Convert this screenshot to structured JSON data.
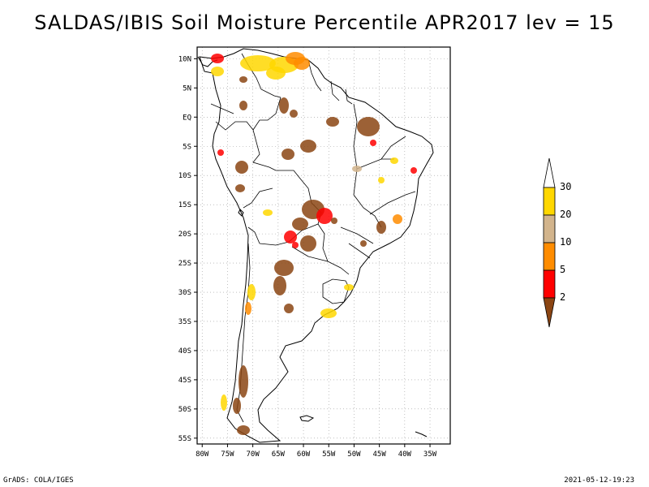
{
  "title": "SALDAS/IBIS Soil Moisture Percentile APR2017 lev = 15",
  "map": {
    "lon_range": [
      -81,
      -31
    ],
    "lat_range": [
      -56,
      12
    ],
    "lat_labels": [
      {
        "lat": 10,
        "label": "10N"
      },
      {
        "lat": 5,
        "label": "5N"
      },
      {
        "lat": 0,
        "label": "EQ"
      },
      {
        "lat": -5,
        "label": "5S"
      },
      {
        "lat": -10,
        "label": "10S"
      },
      {
        "lat": -15,
        "label": "15S"
      },
      {
        "lat": -20,
        "label": "20S"
      },
      {
        "lat": -25,
        "label": "25S"
      },
      {
        "lat": -30,
        "label": "30S"
      },
      {
        "lat": -35,
        "label": "35S"
      },
      {
        "lat": -40,
        "label": "40S"
      },
      {
        "lat": -45,
        "label": "45S"
      },
      {
        "lat": -50,
        "label": "50S"
      },
      {
        "lat": -55,
        "label": "55S"
      }
    ],
    "lon_labels": [
      {
        "lon": -80,
        "label": "80W"
      },
      {
        "lon": -75,
        "label": "75W"
      },
      {
        "lon": -70,
        "label": "70W"
      },
      {
        "lon": -65,
        "label": "65W"
      },
      {
        "lon": -60,
        "label": "60W"
      },
      {
        "lon": -55,
        "label": "55W"
      },
      {
        "lon": -50,
        "label": "50W"
      },
      {
        "lon": -45,
        "label": "45W"
      },
      {
        "lon": -40,
        "label": "40W"
      },
      {
        "lon": -35,
        "label": "35W"
      }
    ]
  },
  "colorbar": {
    "levels": [
      "2",
      "5",
      "10",
      "20",
      "30"
    ],
    "colors": [
      "#8b4513",
      "#ff0000",
      "#ff8c00",
      "#d2b48c",
      "#ffd700",
      "#ffffff"
    ]
  },
  "footer": {
    "left": "GrADS: COLA/IGES",
    "right": "2021-05-12-19:23"
  }
}
